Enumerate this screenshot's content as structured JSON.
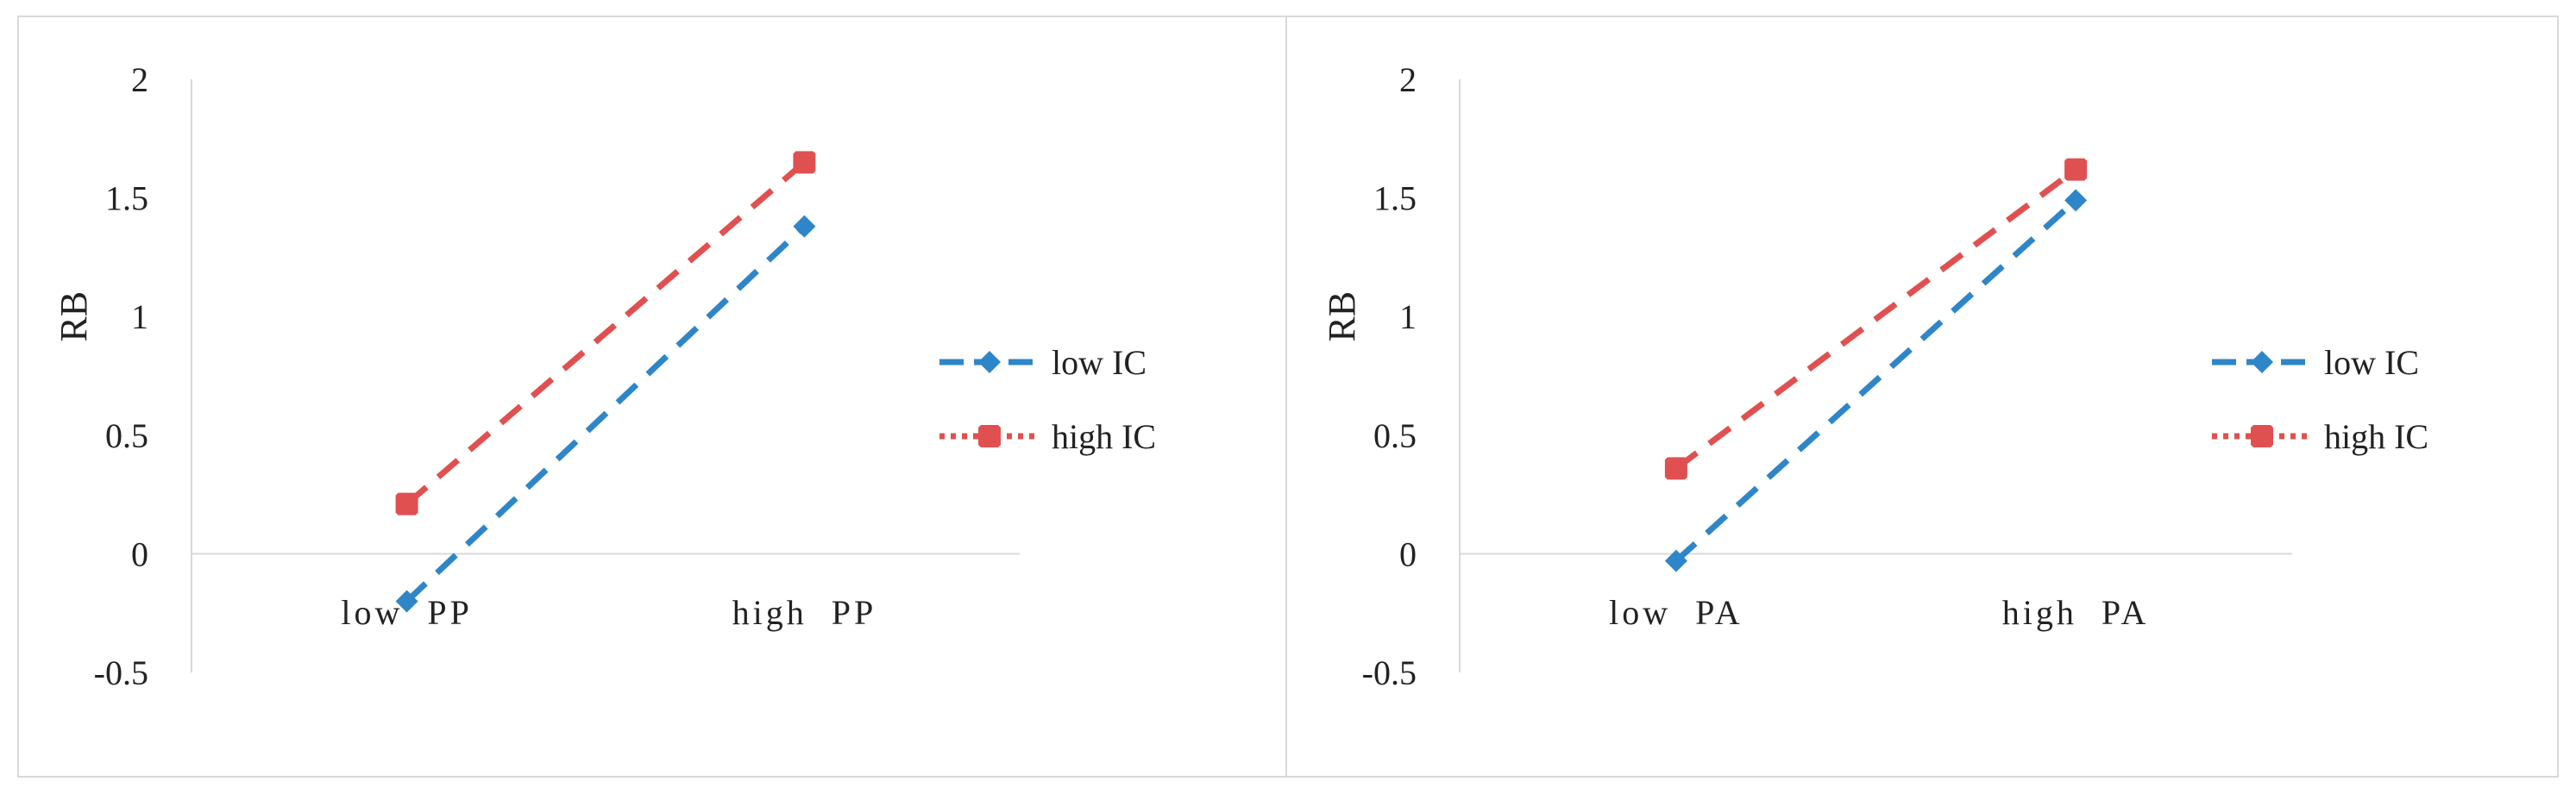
{
  "chart_data": [
    {
      "type": "line",
      "categories": [
        "low  PP",
        "high  PP"
      ],
      "ylabel": "RB",
      "ylim": [
        -0.5,
        2
      ],
      "yticks": [
        "-0.5",
        "0",
        "0.5",
        "1",
        "1.5",
        "2"
      ],
      "legend_position": "right",
      "grid": false,
      "series": [
        {
          "name": "low IC",
          "values": [
            -0.2,
            1.38
          ],
          "color": "#2e86c8",
          "marker": "diamond",
          "dash": "dashed"
        },
        {
          "name": "high IC",
          "values": [
            0.21,
            1.65
          ],
          "color": "#e05050",
          "marker": "square",
          "dash": "dashed"
        }
      ]
    },
    {
      "type": "line",
      "categories": [
        "low  PA",
        "high  PA"
      ],
      "ylabel": "RB",
      "ylim": [
        -0.5,
        2
      ],
      "yticks": [
        "-0.5",
        "0",
        "0.5",
        "1",
        "1.5",
        "2"
      ],
      "legend_position": "right",
      "grid": false,
      "series": [
        {
          "name": "low IC",
          "values": [
            -0.03,
            1.49
          ],
          "color": "#2e86c8",
          "marker": "diamond",
          "dash": "dashed"
        },
        {
          "name": "high IC",
          "values": [
            0.36,
            1.62
          ],
          "color": "#e05050",
          "marker": "square",
          "dash": "dashed"
        }
      ]
    }
  ]
}
